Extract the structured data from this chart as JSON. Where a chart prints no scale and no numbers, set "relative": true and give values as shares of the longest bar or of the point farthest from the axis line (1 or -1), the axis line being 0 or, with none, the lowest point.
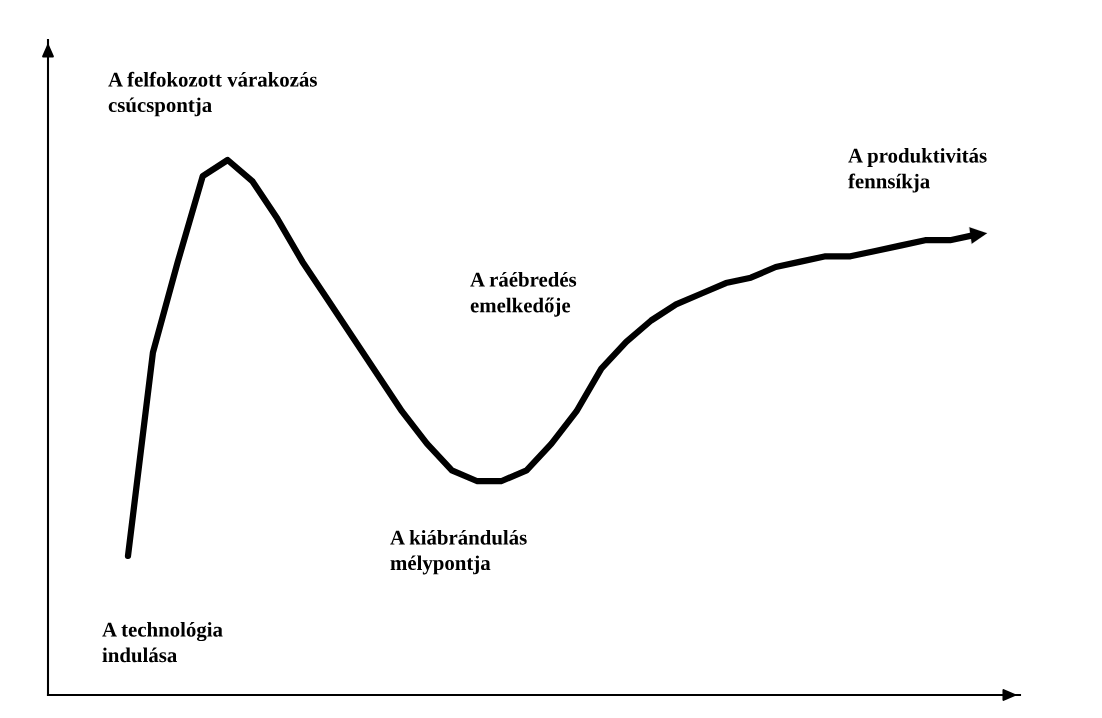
{
  "chart_data": {
    "type": "line",
    "relative": true,
    "categories": [
      null,
      null,
      null,
      null,
      null,
      null,
      null,
      null,
      null,
      null,
      null,
      null,
      null,
      null,
      null,
      null,
      null,
      null,
      null,
      null,
      null,
      null,
      null,
      null,
      null,
      null,
      null,
      null,
      null,
      null,
      null,
      null,
      null,
      null,
      null
    ],
    "series": [
      {
        "color": "#000000",
        "values": [
          0.26,
          0.64,
          0.81,
          0.97,
          1.0,
          0.96,
          0.89,
          0.81,
          0.74,
          0.67,
          0.6,
          0.53,
          0.47,
          0.42,
          0.4,
          0.4,
          0.42,
          0.47,
          0.53,
          0.61,
          0.66,
          0.7,
          0.73,
          0.75,
          0.77,
          0.78,
          0.8,
          0.81,
          0.82,
          0.82,
          0.83,
          0.84,
          0.85,
          0.85,
          0.86
        ]
      }
    ],
    "annotations": [
      "A felfokozott várakozás\ncsúcspontja",
      "A produktivitás\nfennsíkja",
      "A ráébredés\nemelkedője",
      "A kiábrándulás\nmélypontja",
      "A technológia\nindulása"
    ],
    "legend": false,
    "marker": "none",
    "line_style": "solid"
  }
}
